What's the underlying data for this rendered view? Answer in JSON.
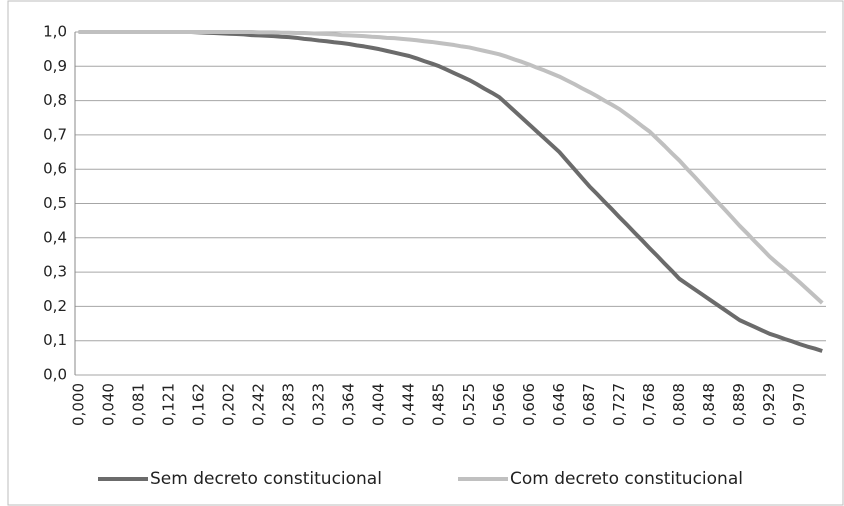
{
  "chart_data": {
    "type": "line",
    "categories": [
      "0,000",
      null,
      null,
      null,
      "0,040",
      null,
      null,
      null,
      "0,081",
      null,
      null,
      null,
      "0,121",
      null,
      null,
      null,
      "0,162",
      null,
      null,
      null,
      "0,202",
      null,
      null,
      null,
      "0,242",
      null,
      null,
      null,
      "0,283",
      null,
      null,
      null,
      "0,323",
      null,
      null,
      null,
      "0,364",
      null,
      null,
      null,
      "0,404",
      null,
      null,
      null,
      "0,444",
      null,
      null,
      null,
      "0,485",
      null,
      null,
      null,
      "0,525",
      null,
      null,
      null,
      "0,566",
      null,
      null,
      null,
      "0,606",
      null,
      null,
      null,
      "0,646",
      null,
      null,
      null,
      "0,687",
      null,
      null,
      null,
      "0,727",
      null,
      null,
      null,
      "0,768",
      null,
      null,
      null,
      "0,808",
      null,
      null,
      null,
      "0,848",
      null,
      null,
      null,
      "0,889",
      null,
      null,
      null,
      "0,929",
      null,
      null,
      null,
      "0,970",
      null,
      null,
      null
    ],
    "series": [
      {
        "name": "Sem decreto constitucional",
        "color": "#6b6b6b",
        "values": [
          1,
          1,
          1,
          1,
          1,
          1,
          1,
          1,
          1,
          1,
          1,
          1,
          1,
          1,
          1,
          1,
          0.999,
          0.998,
          0.997,
          0.996,
          0.995,
          0.994,
          0.993,
          0.991,
          0.99,
          0.989,
          0.988,
          0.986,
          0.985,
          0.983,
          0.98,
          0.978,
          0.975,
          0.973,
          0.97,
          0.968,
          0.965,
          0.961,
          0.958,
          0.954,
          0.95,
          0.945,
          0.94,
          0.935,
          0.93,
          0.923,
          0.915,
          0.908,
          0.9,
          0.89,
          0.88,
          0.87,
          0.86,
          0.848,
          0.835,
          0.823,
          0.81,
          0.79,
          0.77,
          0.75,
          0.73,
          0.71,
          0.69,
          0.67,
          0.65,
          0.625,
          0.6,
          0.575,
          0.55,
          0.528,
          0.505,
          0.483,
          0.46,
          0.438,
          0.415,
          0.393,
          0.37,
          0.348,
          0.325,
          0.303,
          0.28,
          0.265,
          0.25,
          0.235,
          0.22,
          0.205,
          0.19,
          0.175,
          0.16,
          0.15,
          0.14,
          0.13,
          0.12,
          0.113,
          0.105,
          0.098,
          0.09,
          0.083,
          0.077,
          0.07
        ]
      },
      {
        "name": "Com decreto constitucional",
        "color": "#c0c0c0",
        "values": [
          1,
          1,
          1,
          1,
          1,
          1,
          1,
          1,
          1,
          1,
          1,
          1,
          1,
          1,
          1,
          1,
          1,
          1,
          1,
          1,
          1,
          1,
          1,
          1,
          0.999,
          0.999,
          0.999,
          0.998,
          0.998,
          0.997,
          0.997,
          0.996,
          0.995,
          0.994,
          0.993,
          0.991,
          0.99,
          0.989,
          0.988,
          0.986,
          0.985,
          0.983,
          0.982,
          0.98,
          0.978,
          0.976,
          0.973,
          0.971,
          0.968,
          0.965,
          0.962,
          0.958,
          0.955,
          0.95,
          0.945,
          0.94,
          0.935,
          0.928,
          0.92,
          0.913,
          0.905,
          0.896,
          0.888,
          0.879,
          0.87,
          0.859,
          0.848,
          0.836,
          0.825,
          0.813,
          0.8,
          0.788,
          0.775,
          0.759,
          0.743,
          0.726,
          0.71,
          0.689,
          0.668,
          0.646,
          0.625,
          0.601,
          0.578,
          0.554,
          0.53,
          0.506,
          0.483,
          0.459,
          0.435,
          0.413,
          0.39,
          0.368,
          0.345,
          0.326,
          0.308,
          0.289,
          0.27,
          0.25,
          0.23,
          0.21
        ]
      }
    ],
    "ylim": [
      0,
      1
    ],
    "yticks": [
      {
        "value": 0,
        "label": "0,0"
      },
      {
        "value": 0.1,
        "label": "0,1"
      },
      {
        "value": 0.2,
        "label": "0,2"
      },
      {
        "value": 0.3,
        "label": "0,3"
      },
      {
        "value": 0.4,
        "label": "0,4"
      },
      {
        "value": 0.5,
        "label": "0,5"
      },
      {
        "value": 0.6,
        "label": "0,6"
      },
      {
        "value": 0.7,
        "label": "0,7"
      },
      {
        "value": 0.8,
        "label": "0,8"
      },
      {
        "value": 0.9,
        "label": "0,9"
      },
      {
        "value": 1,
        "label": "1,0"
      }
    ],
    "grid": true,
    "legend": "bottom"
  }
}
